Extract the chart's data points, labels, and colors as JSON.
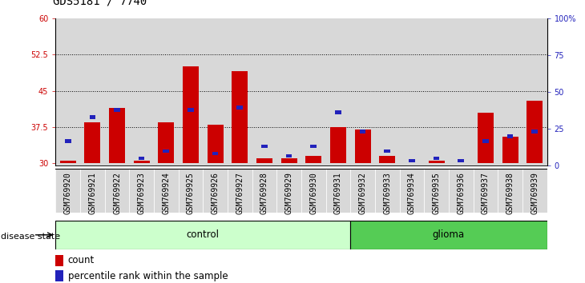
{
  "title": "GDS5181 / 7740",
  "samples": [
    "GSM769920",
    "GSM769921",
    "GSM769922",
    "GSM769923",
    "GSM769924",
    "GSM769925",
    "GSM769926",
    "GSM769927",
    "GSM769928",
    "GSM769929",
    "GSM769930",
    "GSM769931",
    "GSM769932",
    "GSM769933",
    "GSM769934",
    "GSM769935",
    "GSM769936",
    "GSM769937",
    "GSM769938",
    "GSM769939"
  ],
  "bar_heights": [
    30.5,
    38.5,
    41.5,
    30.5,
    38.5,
    50.0,
    38.0,
    49.0,
    31.0,
    31.0,
    31.5,
    37.5,
    37.0,
    31.5,
    30.0,
    30.5,
    30.0,
    40.5,
    35.5,
    43.0
  ],
  "blue_heights": [
    34.5,
    39.5,
    41.0,
    31.0,
    32.5,
    41.0,
    32.0,
    41.5,
    33.5,
    31.5,
    33.5,
    40.5,
    36.5,
    32.5,
    30.5,
    31.0,
    30.5,
    34.5,
    35.5,
    36.5
  ],
  "control_count": 12,
  "glioma_count": 8,
  "ymin": 29.5,
  "ymax": 60,
  "yticks_left": [
    30,
    37.5,
    45,
    52.5,
    60
  ],
  "ytick_labels_left": [
    "30",
    "37.5",
    "45",
    "52.5",
    "60"
  ],
  "ytick_labels_right": [
    "0",
    "25",
    "50",
    "75",
    "100%"
  ],
  "bar_color": "#cc0000",
  "blue_color": "#2222bb",
  "control_bg": "#ccffcc",
  "glioma_bg": "#55cc55",
  "bg_gray": "#d8d8d8",
  "xlabel_control": "control",
  "xlabel_glioma": "glioma",
  "disease_label": "disease state",
  "legend_count": "count",
  "legend_percentile": "percentile rank within the sample",
  "title_fontsize": 10,
  "tick_fontsize": 7,
  "label_fontsize": 8.5,
  "bar_bottom": 30
}
